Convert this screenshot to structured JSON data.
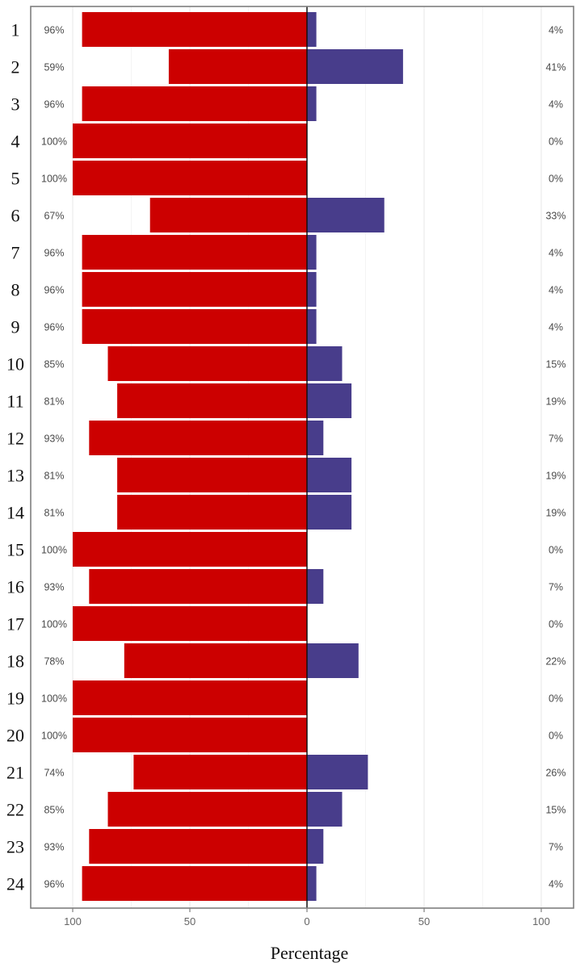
{
  "chart_data": {
    "type": "bar",
    "orientation": "horizontal-diverging",
    "categories": [
      "1",
      "2",
      "3",
      "4",
      "5",
      "6",
      "7",
      "8",
      "9",
      "10",
      "11",
      "12",
      "13",
      "14",
      "15",
      "16",
      "17",
      "18",
      "19",
      "20",
      "21",
      "22",
      "23",
      "24"
    ],
    "series": [
      {
        "side": "left",
        "color": "#cc0000",
        "values": [
          96,
          59,
          96,
          100,
          100,
          67,
          96,
          96,
          96,
          85,
          81,
          93,
          81,
          81,
          100,
          93,
          100,
          78,
          100,
          100,
          74,
          85,
          93,
          96
        ],
        "value_labels": [
          "96%",
          "59%",
          "96%",
          "100%",
          "100%",
          "67%",
          "96%",
          "96%",
          "96%",
          "85%",
          "81%",
          "93%",
          "81%",
          "81%",
          "100%",
          "93%",
          "100%",
          "78%",
          "100%",
          "100%",
          "74%",
          "85%",
          "93%",
          "96%"
        ]
      },
      {
        "side": "right",
        "color": "#483d8b",
        "values": [
          4,
          41,
          4,
          0,
          0,
          33,
          4,
          4,
          4,
          15,
          19,
          7,
          19,
          19,
          0,
          7,
          0,
          22,
          0,
          0,
          26,
          15,
          7,
          4
        ],
        "value_labels": [
          "4%",
          "41%",
          "4%",
          "0%",
          "0%",
          "33%",
          "4%",
          "4%",
          "4%",
          "15%",
          "19%",
          "7%",
          "19%",
          "19%",
          "0%",
          "7%",
          "0%",
          "22%",
          "0%",
          "0%",
          "26%",
          "15%",
          "7%",
          "4%"
        ]
      }
    ],
    "xlabel": "Percentage",
    "ylabel": "",
    "xlim": [
      -100,
      100
    ],
    "x_ticks": [
      -100,
      -50,
      0,
      50,
      100
    ],
    "x_tick_labels": [
      "100",
      "50",
      "0",
      "50",
      "100"
    ],
    "grid": true
  }
}
